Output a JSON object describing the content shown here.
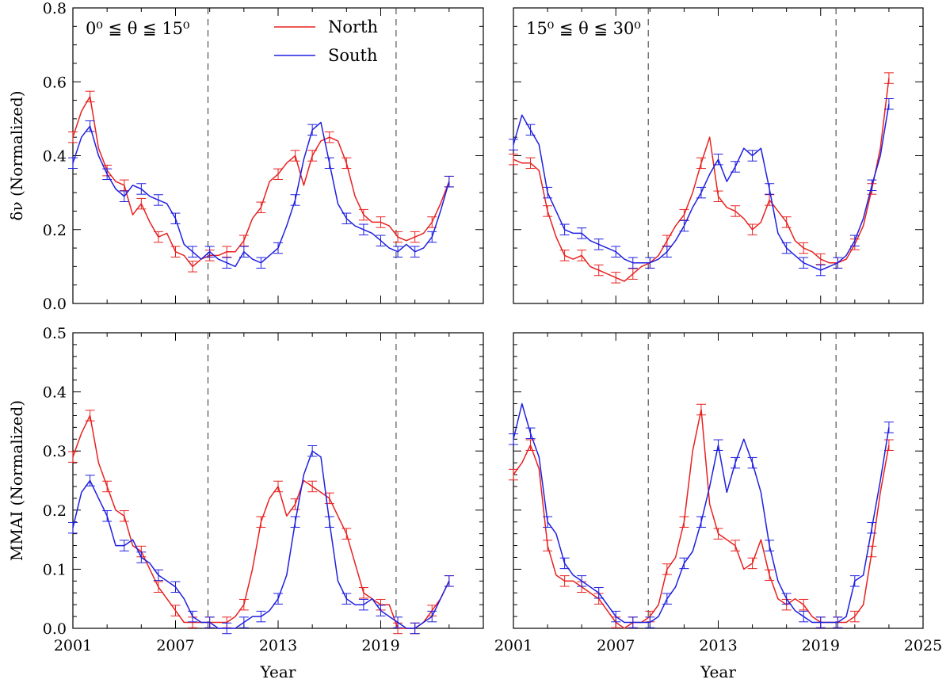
{
  "chart_data": [
    {
      "type": "line",
      "panel": "top-left",
      "annotation": "0⁰ ≦ θ ≦ 15⁰",
      "ylabel": "δν (Normalized)",
      "xlabel": "",
      "ylim": [
        0.0,
        0.8
      ],
      "yticks": [
        "0.0",
        "0.2",
        "0.4",
        "0.6",
        "0.8"
      ],
      "xlim": [
        2001,
        2025
      ],
      "xticks": [
        "",
        "",
        "",
        ""
      ],
      "vlines": [
        2008.9,
        2019.9
      ],
      "legend": {
        "position": "top-center",
        "entries": [
          {
            "name": "North",
            "color": "#e8211f"
          },
          {
            "name": "South",
            "color": "#1f1fe0"
          }
        ]
      },
      "series": [
        {
          "name": "North",
          "color": "#e8211f",
          "x": [
            2001.0,
            2001.5,
            2002.0,
            2002.5,
            2003.0,
            2003.5,
            2004.0,
            2004.5,
            2005.0,
            2005.5,
            2006.0,
            2006.5,
            2007.0,
            2007.5,
            2008.0,
            2008.5,
            2009.0,
            2009.5,
            2010.0,
            2010.5,
            2011.0,
            2011.5,
            2012.0,
            2012.5,
            2013.0,
            2013.5,
            2014.0,
            2014.5,
            2015.0,
            2015.5,
            2016.0,
            2016.5,
            2017.0,
            2017.5,
            2018.0,
            2018.5,
            2019.0,
            2019.5,
            2020.0,
            2020.5,
            2021.0,
            2021.5,
            2022.0,
            2022.5,
            2023.0
          ],
          "y": [
            0.45,
            0.52,
            0.56,
            0.42,
            0.36,
            0.33,
            0.32,
            0.24,
            0.27,
            0.22,
            0.18,
            0.19,
            0.14,
            0.13,
            0.1,
            0.12,
            0.13,
            0.13,
            0.14,
            0.14,
            0.17,
            0.23,
            0.26,
            0.33,
            0.35,
            0.38,
            0.4,
            0.32,
            0.4,
            0.44,
            0.45,
            0.44,
            0.38,
            0.29,
            0.24,
            0.22,
            0.22,
            0.21,
            0.18,
            0.17,
            0.18,
            0.19,
            0.22,
            0.27,
            0.33
          ]
        },
        {
          "name": "South",
          "color": "#1f1fe0",
          "x": [
            2001.0,
            2001.5,
            2002.0,
            2002.5,
            2003.0,
            2003.5,
            2004.0,
            2004.5,
            2005.0,
            2005.5,
            2006.0,
            2006.5,
            2007.0,
            2007.5,
            2008.0,
            2008.5,
            2009.0,
            2009.5,
            2010.0,
            2010.5,
            2011.0,
            2011.5,
            2012.0,
            2012.5,
            2013.0,
            2013.5,
            2014.0,
            2014.5,
            2015.0,
            2015.5,
            2016.0,
            2016.5,
            2017.0,
            2017.5,
            2018.0,
            2018.5,
            2019.0,
            2019.5,
            2020.0,
            2020.5,
            2021.0,
            2021.5,
            2022.0,
            2022.5,
            2023.0
          ],
          "y": [
            0.38,
            0.45,
            0.48,
            0.4,
            0.35,
            0.31,
            0.29,
            0.32,
            0.31,
            0.29,
            0.28,
            0.27,
            0.23,
            0.16,
            0.14,
            0.12,
            0.14,
            0.12,
            0.11,
            0.1,
            0.14,
            0.12,
            0.11,
            0.13,
            0.15,
            0.21,
            0.28,
            0.39,
            0.47,
            0.49,
            0.38,
            0.27,
            0.23,
            0.21,
            0.2,
            0.19,
            0.17,
            0.15,
            0.14,
            0.16,
            0.14,
            0.15,
            0.18,
            0.25,
            0.33
          ]
        }
      ]
    },
    {
      "type": "line",
      "panel": "top-right",
      "annotation": "15⁰ ≦ θ ≦ 30⁰",
      "ylabel": "",
      "xlabel": "",
      "ylim": [
        0.0,
        0.8
      ],
      "yticks": [
        "",
        "",
        "",
        "",
        ""
      ],
      "xlim": [
        2001,
        2025
      ],
      "xticks": [
        "",
        "",
        "",
        "",
        ""
      ],
      "vlines": [
        2008.9,
        2019.9
      ],
      "series": [
        {
          "name": "North",
          "color": "#e8211f",
          "x": [
            2001.0,
            2001.5,
            2002.0,
            2002.5,
            2003.0,
            2003.5,
            2004.0,
            2004.5,
            2005.0,
            2005.5,
            2006.0,
            2006.5,
            2007.0,
            2007.5,
            2008.0,
            2008.5,
            2009.0,
            2009.5,
            2010.0,
            2010.5,
            2011.0,
            2011.5,
            2012.0,
            2012.5,
            2013.0,
            2013.5,
            2014.0,
            2014.5,
            2015.0,
            2015.5,
            2016.0,
            2016.5,
            2017.0,
            2017.5,
            2018.0,
            2018.5,
            2019.0,
            2019.5,
            2020.0,
            2020.5,
            2021.0,
            2021.5,
            2022.0,
            2022.5,
            2023.0
          ],
          "y": [
            0.39,
            0.38,
            0.38,
            0.36,
            0.25,
            0.18,
            0.13,
            0.12,
            0.13,
            0.1,
            0.09,
            0.08,
            0.07,
            0.06,
            0.08,
            0.1,
            0.11,
            0.13,
            0.17,
            0.21,
            0.24,
            0.3,
            0.38,
            0.45,
            0.29,
            0.26,
            0.25,
            0.23,
            0.2,
            0.22,
            0.28,
            0.25,
            0.22,
            0.17,
            0.15,
            0.14,
            0.12,
            0.11,
            0.11,
            0.12,
            0.16,
            0.21,
            0.31,
            0.42,
            0.61
          ]
        },
        {
          "name": "South",
          "color": "#1f1fe0",
          "x": [
            2001.0,
            2001.5,
            2002.0,
            2002.5,
            2003.0,
            2003.5,
            2004.0,
            2004.5,
            2005.0,
            2005.5,
            2006.0,
            2006.5,
            2007.0,
            2007.5,
            2008.0,
            2008.5,
            2009.0,
            2009.5,
            2010.0,
            2010.5,
            2011.0,
            2011.5,
            2012.0,
            2012.5,
            2013.0,
            2013.5,
            2014.0,
            2014.5,
            2015.0,
            2015.5,
            2016.0,
            2016.5,
            2017.0,
            2017.5,
            2018.0,
            2018.5,
            2019.0,
            2019.5,
            2020.0,
            2020.5,
            2021.0,
            2021.5,
            2022.0,
            2022.5,
            2023.0
          ],
          "y": [
            0.43,
            0.51,
            0.47,
            0.43,
            0.3,
            0.25,
            0.2,
            0.19,
            0.19,
            0.17,
            0.16,
            0.15,
            0.14,
            0.12,
            0.11,
            0.11,
            0.11,
            0.12,
            0.14,
            0.17,
            0.21,
            0.26,
            0.3,
            0.35,
            0.39,
            0.33,
            0.37,
            0.42,
            0.4,
            0.42,
            0.31,
            0.19,
            0.15,
            0.13,
            0.11,
            0.1,
            0.09,
            0.1,
            0.11,
            0.13,
            0.17,
            0.23,
            0.32,
            0.4,
            0.54
          ]
        }
      ]
    },
    {
      "type": "line",
      "panel": "bottom-left",
      "annotation": "",
      "ylabel": "MMAI (Normalized)",
      "xlabel": "Year",
      "ylim": [
        0.0,
        0.5
      ],
      "yticks": [
        "0.0",
        "0.1",
        "0.2",
        "0.3",
        "0.4",
        "0.5"
      ],
      "xlim": [
        2001,
        2025
      ],
      "xticks": [
        "2001",
        "2007",
        "2013",
        "2019"
      ],
      "vlines": [
        2008.9,
        2019.9
      ],
      "series": [
        {
          "name": "North",
          "color": "#e8211f",
          "x": [
            2001.0,
            2001.5,
            2002.0,
            2002.5,
            2003.0,
            2003.5,
            2004.0,
            2004.5,
            2005.0,
            2005.5,
            2006.0,
            2006.5,
            2007.0,
            2007.5,
            2008.0,
            2008.5,
            2009.0,
            2009.5,
            2010.0,
            2010.5,
            2011.0,
            2011.5,
            2012.0,
            2012.5,
            2013.0,
            2013.5,
            2014.0,
            2014.5,
            2015.0,
            2015.5,
            2016.0,
            2016.5,
            2017.0,
            2017.5,
            2018.0,
            2018.5,
            2019.0,
            2019.5,
            2020.0,
            2020.5,
            2021.0,
            2021.5,
            2022.0,
            2022.5,
            2023.0
          ],
          "y": [
            0.29,
            0.33,
            0.36,
            0.28,
            0.24,
            0.2,
            0.19,
            0.14,
            0.13,
            0.1,
            0.07,
            0.05,
            0.03,
            0.01,
            0.01,
            0.01,
            0.01,
            0.01,
            0.01,
            0.02,
            0.04,
            0.1,
            0.18,
            0.22,
            0.24,
            0.19,
            0.21,
            0.25,
            0.24,
            0.23,
            0.22,
            0.19,
            0.16,
            0.11,
            0.06,
            0.05,
            0.04,
            0.04,
            0.0,
            0.0,
            0.0,
            0.01,
            0.03,
            0.05,
            0.08
          ]
        },
        {
          "name": "South",
          "color": "#1f1fe0",
          "x": [
            2001.0,
            2001.5,
            2002.0,
            2002.5,
            2003.0,
            2003.5,
            2004.0,
            2004.5,
            2005.0,
            2005.5,
            2006.0,
            2006.5,
            2007.0,
            2007.5,
            2008.0,
            2008.5,
            2009.0,
            2009.5,
            2010.0,
            2010.5,
            2011.0,
            2011.5,
            2012.0,
            2012.5,
            2013.0,
            2013.5,
            2014.0,
            2014.5,
            2015.0,
            2015.5,
            2016.0,
            2016.5,
            2017.0,
            2017.5,
            2018.0,
            2018.5,
            2019.0,
            2019.5,
            2020.0,
            2020.5,
            2021.0,
            2021.5,
            2022.0,
            2022.5,
            2023.0
          ],
          "y": [
            0.17,
            0.23,
            0.25,
            0.22,
            0.19,
            0.14,
            0.14,
            0.15,
            0.12,
            0.11,
            0.09,
            0.08,
            0.07,
            0.05,
            0.02,
            0.01,
            0.01,
            0.0,
            0.0,
            0.0,
            0.01,
            0.02,
            0.02,
            0.03,
            0.05,
            0.09,
            0.18,
            0.26,
            0.3,
            0.29,
            0.18,
            0.08,
            0.05,
            0.04,
            0.04,
            0.05,
            0.03,
            0.02,
            0.01,
            0.0,
            0.0,
            0.01,
            0.02,
            0.05,
            0.08
          ]
        }
      ]
    },
    {
      "type": "line",
      "panel": "bottom-right",
      "annotation": "",
      "ylabel": "",
      "xlabel": "Year",
      "ylim": [
        0.0,
        0.5
      ],
      "yticks": [
        "",
        "",
        "",
        "",
        "",
        ""
      ],
      "xlim": [
        2001,
        2025
      ],
      "xticks": [
        "2001",
        "2007",
        "2013",
        "2019",
        "2025"
      ],
      "vlines": [
        2008.9,
        2019.9
      ],
      "series": [
        {
          "name": "North",
          "color": "#e8211f",
          "x": [
            2001.0,
            2001.5,
            2002.0,
            2002.5,
            2003.0,
            2003.5,
            2004.0,
            2004.5,
            2005.0,
            2005.5,
            2006.0,
            2006.5,
            2007.0,
            2007.5,
            2008.0,
            2008.5,
            2009.0,
            2009.5,
            2010.0,
            2010.5,
            2011.0,
            2011.5,
            2012.0,
            2012.5,
            2013.0,
            2013.5,
            2014.0,
            2014.5,
            2015.0,
            2015.5,
            2016.0,
            2016.5,
            2017.0,
            2017.5,
            2018.0,
            2018.5,
            2019.0,
            2019.5,
            2020.0,
            2020.5,
            2021.0,
            2021.5,
            2022.0,
            2022.5,
            2023.0
          ],
          "y": [
            0.26,
            0.28,
            0.31,
            0.27,
            0.14,
            0.09,
            0.08,
            0.08,
            0.07,
            0.06,
            0.05,
            0.03,
            0.01,
            0.0,
            0.01,
            0.01,
            0.02,
            0.04,
            0.1,
            0.12,
            0.18,
            0.3,
            0.37,
            0.21,
            0.16,
            0.15,
            0.14,
            0.1,
            0.11,
            0.15,
            0.09,
            0.05,
            0.04,
            0.05,
            0.04,
            0.02,
            0.01,
            0.01,
            0.01,
            0.01,
            0.02,
            0.04,
            0.13,
            0.23,
            0.31
          ]
        },
        {
          "name": "South",
          "color": "#1f1fe0",
          "x": [
            2001.0,
            2001.5,
            2002.0,
            2002.5,
            2003.0,
            2003.5,
            2004.0,
            2004.5,
            2005.0,
            2005.5,
            2006.0,
            2006.5,
            2007.0,
            2007.5,
            2008.0,
            2008.5,
            2009.0,
            2009.5,
            2010.0,
            2010.5,
            2011.0,
            2011.5,
            2012.0,
            2012.5,
            2013.0,
            2013.5,
            2014.0,
            2014.5,
            2015.0,
            2015.5,
            2016.0,
            2016.5,
            2017.0,
            2017.5,
            2018.0,
            2018.5,
            2019.0,
            2019.5,
            2020.0,
            2020.5,
            2021.0,
            2021.5,
            2022.0,
            2022.5,
            2023.0
          ],
          "y": [
            0.32,
            0.38,
            0.33,
            0.29,
            0.18,
            0.16,
            0.11,
            0.09,
            0.08,
            0.07,
            0.06,
            0.04,
            0.02,
            0.01,
            0.01,
            0.01,
            0.01,
            0.02,
            0.05,
            0.07,
            0.11,
            0.13,
            0.18,
            0.24,
            0.31,
            0.23,
            0.28,
            0.32,
            0.28,
            0.23,
            0.14,
            0.08,
            0.05,
            0.03,
            0.02,
            0.01,
            0.01,
            0.01,
            0.01,
            0.02,
            0.08,
            0.09,
            0.17,
            0.25,
            0.34
          ]
        }
      ]
    }
  ]
}
